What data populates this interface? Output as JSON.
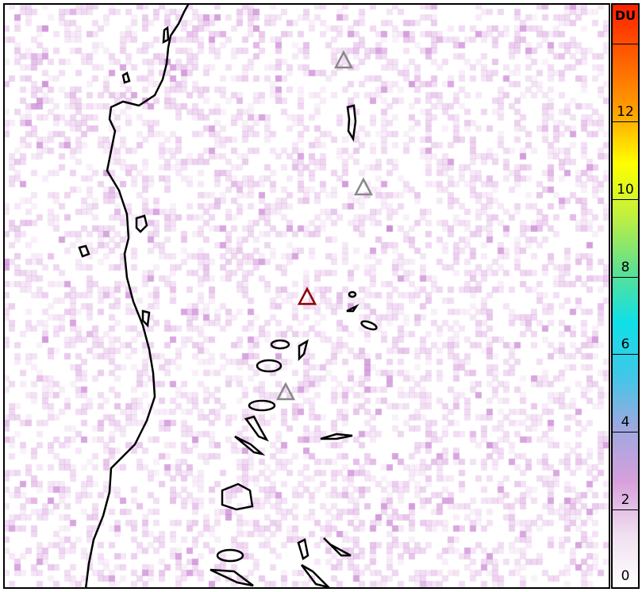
{
  "map": {
    "volcanoes": [
      {
        "status": "inactive",
        "color": "#888888"
      },
      {
        "status": "inactive",
        "color": "#888888"
      },
      {
        "status": "active",
        "color": "#8b0000"
      },
      {
        "status": "inactive",
        "color": "#888888"
      }
    ]
  },
  "colorbar": {
    "unit": "DU",
    "min": 0,
    "max": 15,
    "ticks": [
      "0",
      "2",
      "4",
      "6",
      "8",
      "10",
      "12",
      ""
    ],
    "colors": [
      "#ffffff",
      "#f0e0f0",
      "#d8a0dc",
      "#a0a8e0",
      "#40c8e8",
      "#10e0e8",
      "#60e090",
      "#c0f040",
      "#ffff00",
      "#ffa000",
      "#ff6000",
      "#ff2000"
    ]
  }
}
